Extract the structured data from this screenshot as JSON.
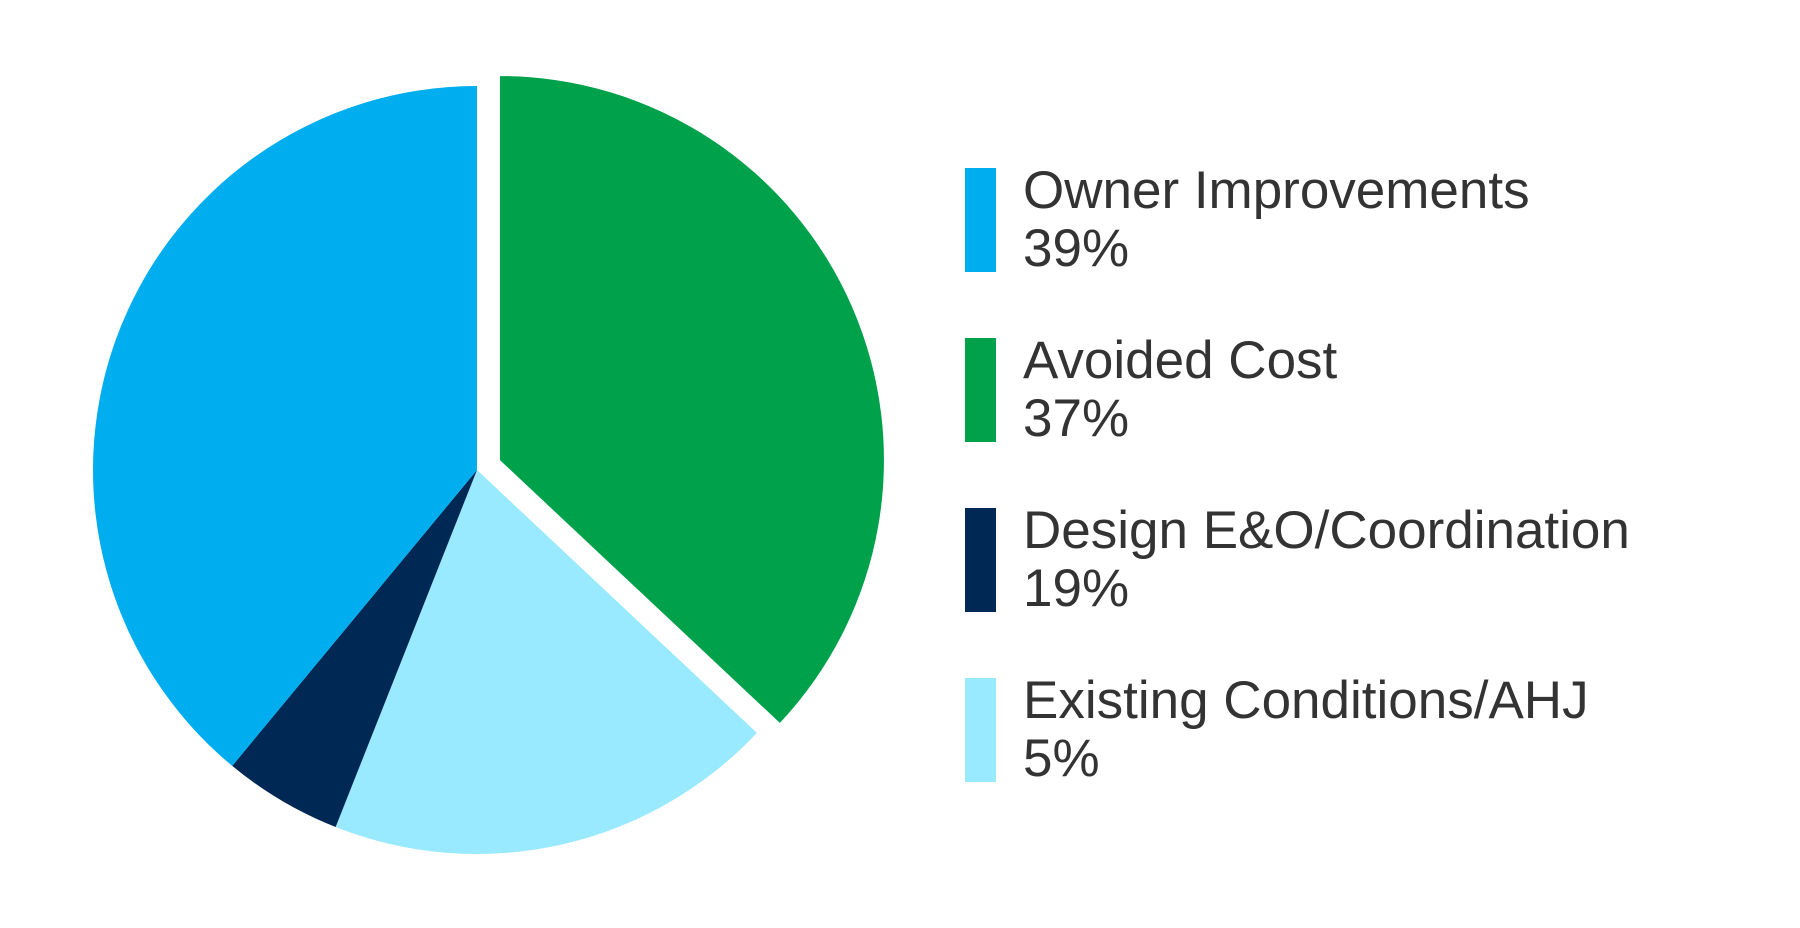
{
  "chart_data": {
    "type": "pie",
    "title": "",
    "legend_position": "right",
    "slices": [
      {
        "label": "Owner Improvements",
        "value": 39,
        "value_label": "39%",
        "color": "#00AEEF",
        "exploded": false
      },
      {
        "label": "Avoided Cost",
        "value": 37,
        "value_label": "37%",
        "color": "#00A14B",
        "exploded": true
      },
      {
        "label": "Design E&O/Coordination",
        "value": 19,
        "value_label": "19%",
        "color": "#002855",
        "exploded": false
      },
      {
        "label": "Existing Conditions/AHJ",
        "value": 5,
        "value_label": "5%",
        "color": "#99E9FF",
        "exploded": false
      }
    ]
  }
}
